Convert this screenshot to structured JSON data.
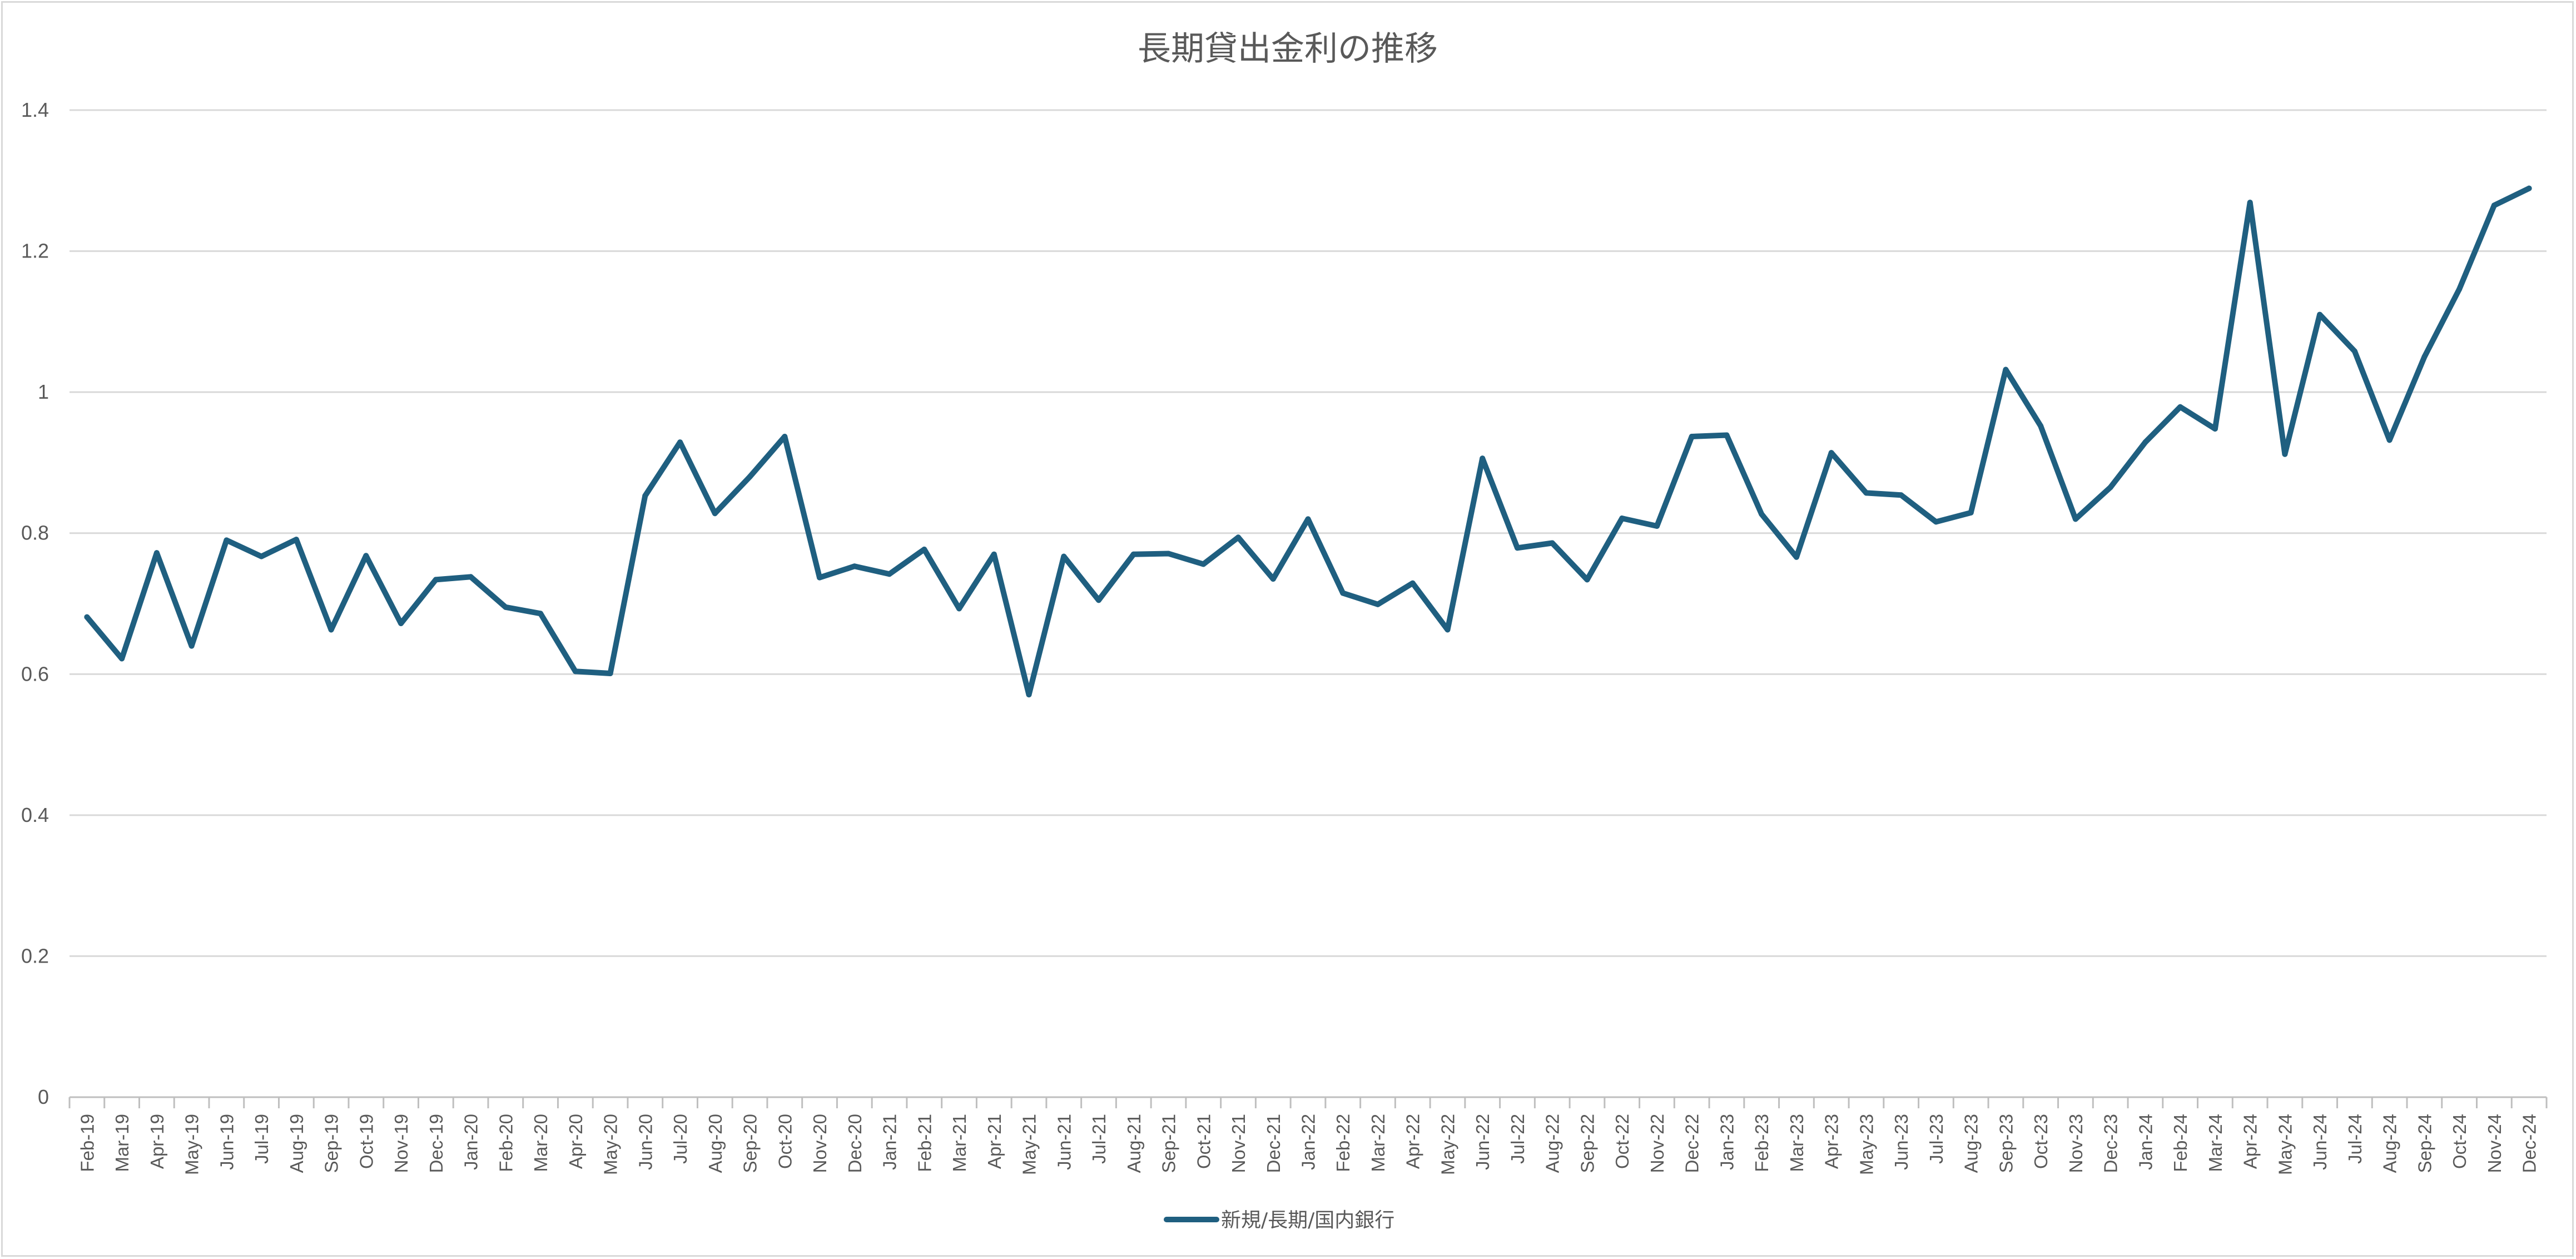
{
  "chart_data": {
    "type": "line",
    "title": "長期貸出金利の推移",
    "xlabel": "",
    "ylabel": "",
    "ylim": [
      0,
      1.4
    ],
    "yticks": [
      "0",
      "0.2",
      "0.4",
      "0.6",
      "0.8",
      "1",
      "1.2",
      "1.4"
    ],
    "grid": true,
    "legend_position": "bottom",
    "colors": {
      "line": "#1f5f80",
      "grid": "#d9d9d9",
      "text": "#595959",
      "axis": "#bfbfbf"
    },
    "categories": [
      "Feb-19",
      "Mar-19",
      "Apr-19",
      "May-19",
      "Jun-19",
      "Jul-19",
      "Aug-19",
      "Sep-19",
      "Oct-19",
      "Nov-19",
      "Dec-19",
      "Jan-20",
      "Feb-20",
      "Mar-20",
      "Apr-20",
      "May-20",
      "Jun-20",
      "Jul-20",
      "Aug-20",
      "Sep-20",
      "Oct-20",
      "Nov-20",
      "Dec-20",
      "Jan-21",
      "Feb-21",
      "Mar-21",
      "Apr-21",
      "May-21",
      "Jun-21",
      "Jul-21",
      "Aug-21",
      "Sep-21",
      "Oct-21",
      "Nov-21",
      "Dec-21",
      "Jan-22",
      "Feb-22",
      "Mar-22",
      "Apr-22",
      "May-22",
      "Jun-22",
      "Jul-22",
      "Aug-22",
      "Sep-22",
      "Oct-22",
      "Nov-22",
      "Dec-22",
      "Jan-23",
      "Feb-23",
      "Mar-23",
      "Apr-23",
      "May-23",
      "Jun-23",
      "Jul-23",
      "Aug-23",
      "Sep-23",
      "Oct-23",
      "Nov-23",
      "Dec-23",
      "Jan-24",
      "Feb-24",
      "Mar-24",
      "Apr-24",
      "May-24",
      "Jun-24",
      "Jul-24",
      "Aug-24",
      "Sep-24",
      "Oct-24",
      "Nov-24",
      "Dec-24"
    ],
    "series": [
      {
        "name": "新規/長期/国内銀行",
        "values": [
          0.681,
          0.622,
          0.772,
          0.64,
          0.79,
          0.767,
          0.791,
          0.663,
          0.768,
          0.672,
          0.734,
          0.738,
          0.695,
          0.686,
          0.604,
          0.601,
          0.853,
          0.929,
          0.828,
          0.88,
          0.937,
          0.737,
          0.753,
          0.742,
          0.777,
          0.693,
          0.77,
          0.571,
          0.767,
          0.705,
          0.77,
          0.771,
          0.756,
          0.794,
          0.735,
          0.82,
          0.715,
          0.699,
          0.729,
          0.663,
          0.906,
          0.779,
          0.786,
          0.734,
          0.821,
          0.81,
          0.937,
          0.939,
          0.827,
          0.766,
          0.914,
          0.857,
          0.854,
          0.816,
          0.829,
          1.032,
          0.952,
          0.82,
          0.865,
          0.929,
          0.979,
          0.948,
          1.269,
          0.912,
          1.11,
          1.058,
          0.932,
          1.05,
          1.146,
          1.265,
          1.289
        ]
      }
    ]
  }
}
